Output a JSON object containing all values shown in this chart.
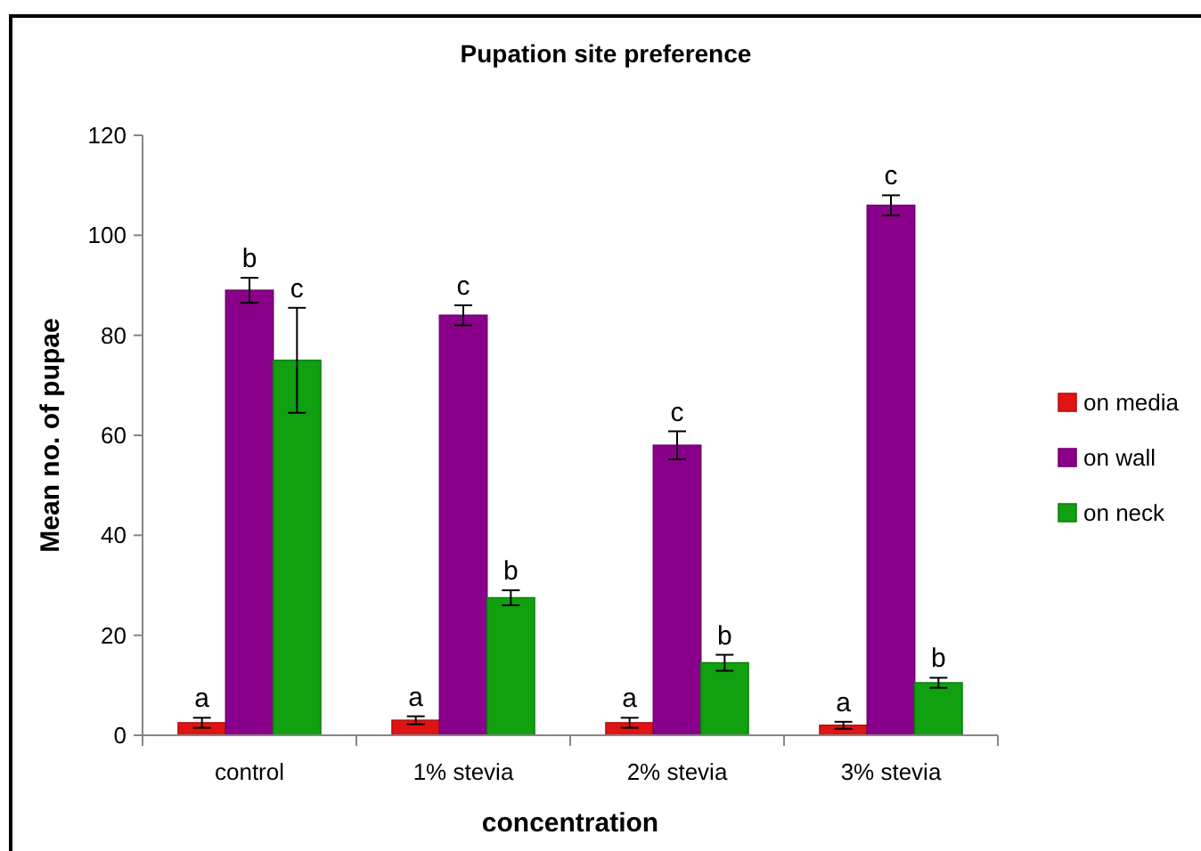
{
  "chart_data": {
    "type": "bar",
    "title": "Pupation site preference",
    "xlabel": "concentration",
    "ylabel": "Mean no. of pupae",
    "categories": [
      "control",
      "1% stevia",
      "2% stevia",
      "3% stevia"
    ],
    "series": [
      {
        "name": "on media",
        "color": "#e01414",
        "values": [
          2.5,
          3,
          2.5,
          2
        ],
        "errors": [
          1,
          0.8,
          1,
          0.7
        ],
        "value_labels": [
          "a",
          "a",
          "a",
          "a"
        ]
      },
      {
        "name": "on wall",
        "color": "#8b008b",
        "values": [
          89,
          84,
          58,
          106
        ],
        "errors": [
          2.5,
          2,
          2.8,
          2
        ],
        "value_labels": [
          "b",
          "c",
          "c",
          "c"
        ]
      },
      {
        "name": "on neck",
        "color": "#10a010",
        "values": [
          75,
          27.5,
          14.5,
          10.5
        ],
        "errors": [
          10.5,
          1.5,
          1.6,
          1
        ],
        "value_labels": [
          "c",
          "b",
          "b",
          "b"
        ]
      }
    ],
    "ylim": [
      0,
      120
    ],
    "yticks": [
      0,
      20,
      40,
      60,
      80,
      100,
      120
    ],
    "grid": false,
    "legend": "right"
  }
}
